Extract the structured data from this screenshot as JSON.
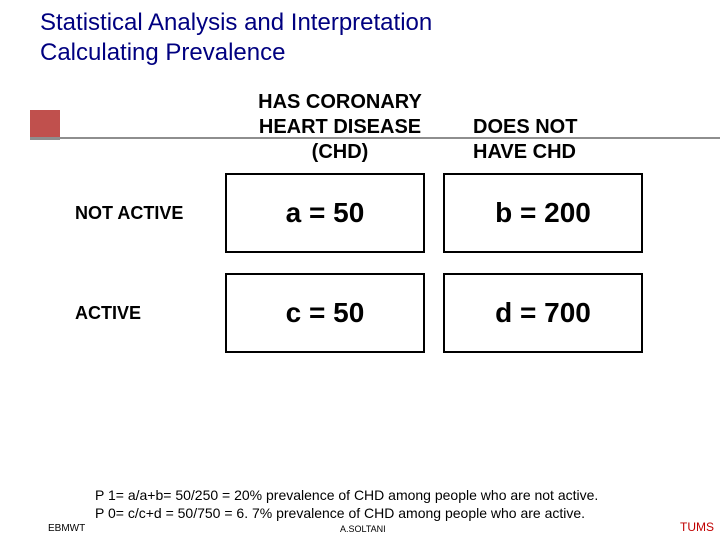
{
  "title_line1": "Statistical  Analysis and Interpretation",
  "title_line2": "Calculating Prevalence",
  "table": {
    "col1_header_l1": "HAS CORONARY",
    "col1_header_l2": "HEART DISEASE",
    "col1_header_l3": "(CHD)",
    "col2_header_l1": "DOES NOT",
    "col2_header_l2": "HAVE CHD",
    "row1_label": "NOT ACTIVE",
    "row2_label": "ACTIVE",
    "a": "a = 50",
    "b": "b = 200",
    "c": "c = 50",
    "d": "d = 700"
  },
  "formulas": {
    "p1": "P 1= a/a+b= 50/250 = 20% prevalence of CHD among people who are not active.",
    "p0": "P 0= c/c+d = 50/750 = 6. 7% prevalence of CHD among people who are active."
  },
  "footer": {
    "left": "EBMWT",
    "mid": "A.SOLTANI",
    "right": "TUMS"
  },
  "colors": {
    "title": "#000080",
    "accent": "#c0504d",
    "footer_right": "#c00000",
    "cell_border": "#000000",
    "background": "#ffffff"
  }
}
